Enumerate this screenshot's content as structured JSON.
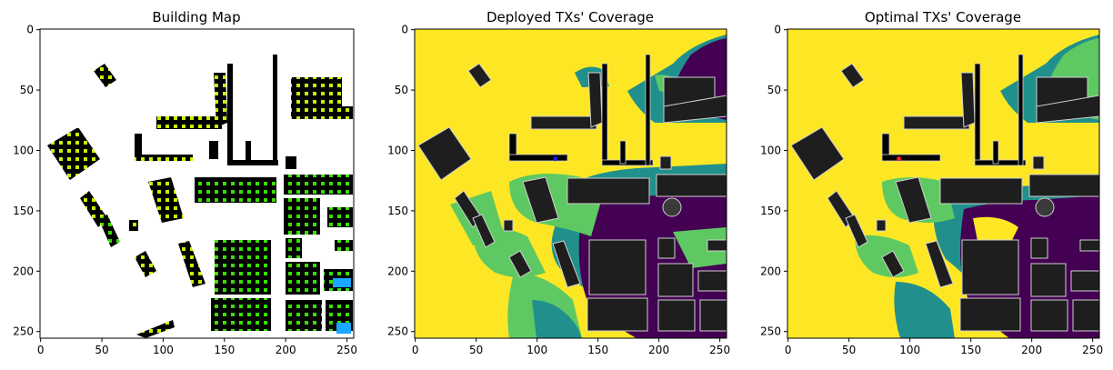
{
  "figure": {
    "panels": [
      {
        "id": "building",
        "title": "Building Map"
      },
      {
        "id": "deployed",
        "title": "Deployed TXs' Coverage"
      },
      {
        "id": "optimal",
        "title": "Optimal TXs' Coverage"
      }
    ]
  },
  "chart_data": [
    {
      "type": "heatmap",
      "title": "Building Map",
      "xlabel": "",
      "ylabel": "",
      "xlim": [
        0,
        255
      ],
      "ylim": [
        255,
        0
      ],
      "xticks": [
        0,
        50,
        100,
        150,
        200,
        250
      ],
      "yticks": [
        0,
        50,
        100,
        150,
        200,
        250
      ],
      "grid": false,
      "colors": {
        "background": "#ffffff",
        "building": "#000000",
        "window": "#38e000",
        "window_alt": "#c8f000",
        "highlight": "#1aa7ff"
      }
    },
    {
      "type": "heatmap",
      "title": "Deployed TXs' Coverage",
      "xlabel": "",
      "ylabel": "",
      "xlim": [
        0,
        255
      ],
      "ylim": [
        255,
        0
      ],
      "xticks": [
        0,
        50,
        100,
        150,
        200,
        250
      ],
      "yticks": [
        0,
        50,
        100,
        150,
        200,
        250
      ],
      "grid": false,
      "transmitter": {
        "x": 115,
        "y": 107,
        "color": "#1a1aff"
      },
      "colors": {
        "high": "#fde725",
        "mid_high": "#5ec962",
        "mid": "#21908d",
        "low": "#440154",
        "building": "#1e1e1e"
      }
    },
    {
      "type": "heatmap",
      "title": "Optimal TXs' Coverage",
      "xlabel": "",
      "ylabel": "",
      "xlim": [
        0,
        255
      ],
      "ylim": [
        255,
        0
      ],
      "xticks": [
        0,
        50,
        100,
        150,
        200,
        250
      ],
      "yticks": [
        0,
        50,
        100,
        150,
        200,
        250
      ],
      "grid": false,
      "transmitter": {
        "x": 91,
        "y": 107,
        "color": "#ff2020"
      },
      "colors": {
        "high": "#fde725",
        "mid_high": "#5ec962",
        "mid": "#21908d",
        "low": "#440154",
        "building": "#1e1e1e"
      }
    }
  ]
}
